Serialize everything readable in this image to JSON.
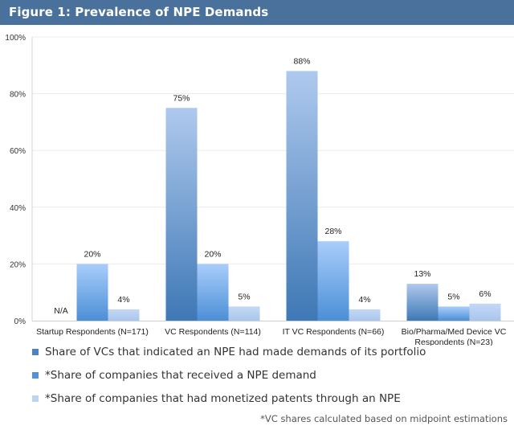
{
  "header": {
    "title": "Figure 1: Prevalence of NPE Demands",
    "background": "#4a719c"
  },
  "chart_data": {
    "type": "bar",
    "title": "Figure 1: Prevalence of NPE Demands",
    "xlabel": "",
    "ylabel": "",
    "ylim": [
      0,
      100
    ],
    "yticks": [
      0,
      20,
      40,
      60,
      80,
      100
    ],
    "ytick_labels": [
      "0%",
      "20%",
      "40%",
      "60%",
      "80%",
      "100%"
    ],
    "grid": true,
    "legend_position": "bottom",
    "categories": [
      "Startup Respondents (N=171)",
      "VC Respondents (N=114)",
      "IT VC Respondents (N=66)",
      "Bio/Pharma/Med Device VC Respondents (N=23)"
    ],
    "category_lines": [
      [
        "Startup Respondents (N=171)"
      ],
      [
        "VC Respondents (N=114)"
      ],
      [
        "IT VC Respondents (N=66)"
      ],
      [
        "Bio/Pharma/Med Device VC",
        "Respondents (N=23)"
      ]
    ],
    "series": [
      {
        "name": "Share of VCs that indicated an NPE had made demands of its portfolio",
        "values": [
          null,
          75,
          88,
          13
        ],
        "labels": [
          "N/A",
          "75%",
          "88%",
          "13%"
        ],
        "color_top": "#afc9ee",
        "color_bottom": "#3e78b5"
      },
      {
        "name": "*Share of companies that received a NPE demand",
        "values": [
          20,
          20,
          28,
          5
        ],
        "labels": [
          "20%",
          "20%",
          "28%",
          "5%"
        ],
        "color_top": "#a9cdfb",
        "color_bottom": "#4b8fd6"
      },
      {
        "name": "*Share of companies that had monetized patents through an NPE",
        "values": [
          4,
          5,
          4,
          6
        ],
        "labels": [
          "4%",
          "5%",
          "4%",
          "6%"
        ],
        "color_top": "#c3d8f5",
        "color_bottom": "#aac6ee"
      }
    ]
  },
  "legend": {
    "items": [
      {
        "label": "Share of VCs that indicated an NPE had made demands of its portfolio",
        "color": "#4d82c0"
      },
      {
        "label": "*Share of companies that received a NPE demand",
        "color": "#5591d4"
      },
      {
        "label": "*Share of companies that had monetized patents through an NPE",
        "color": "#bcd3f2"
      }
    ]
  },
  "footnote": "*VC shares calculated based on midpoint estimations"
}
